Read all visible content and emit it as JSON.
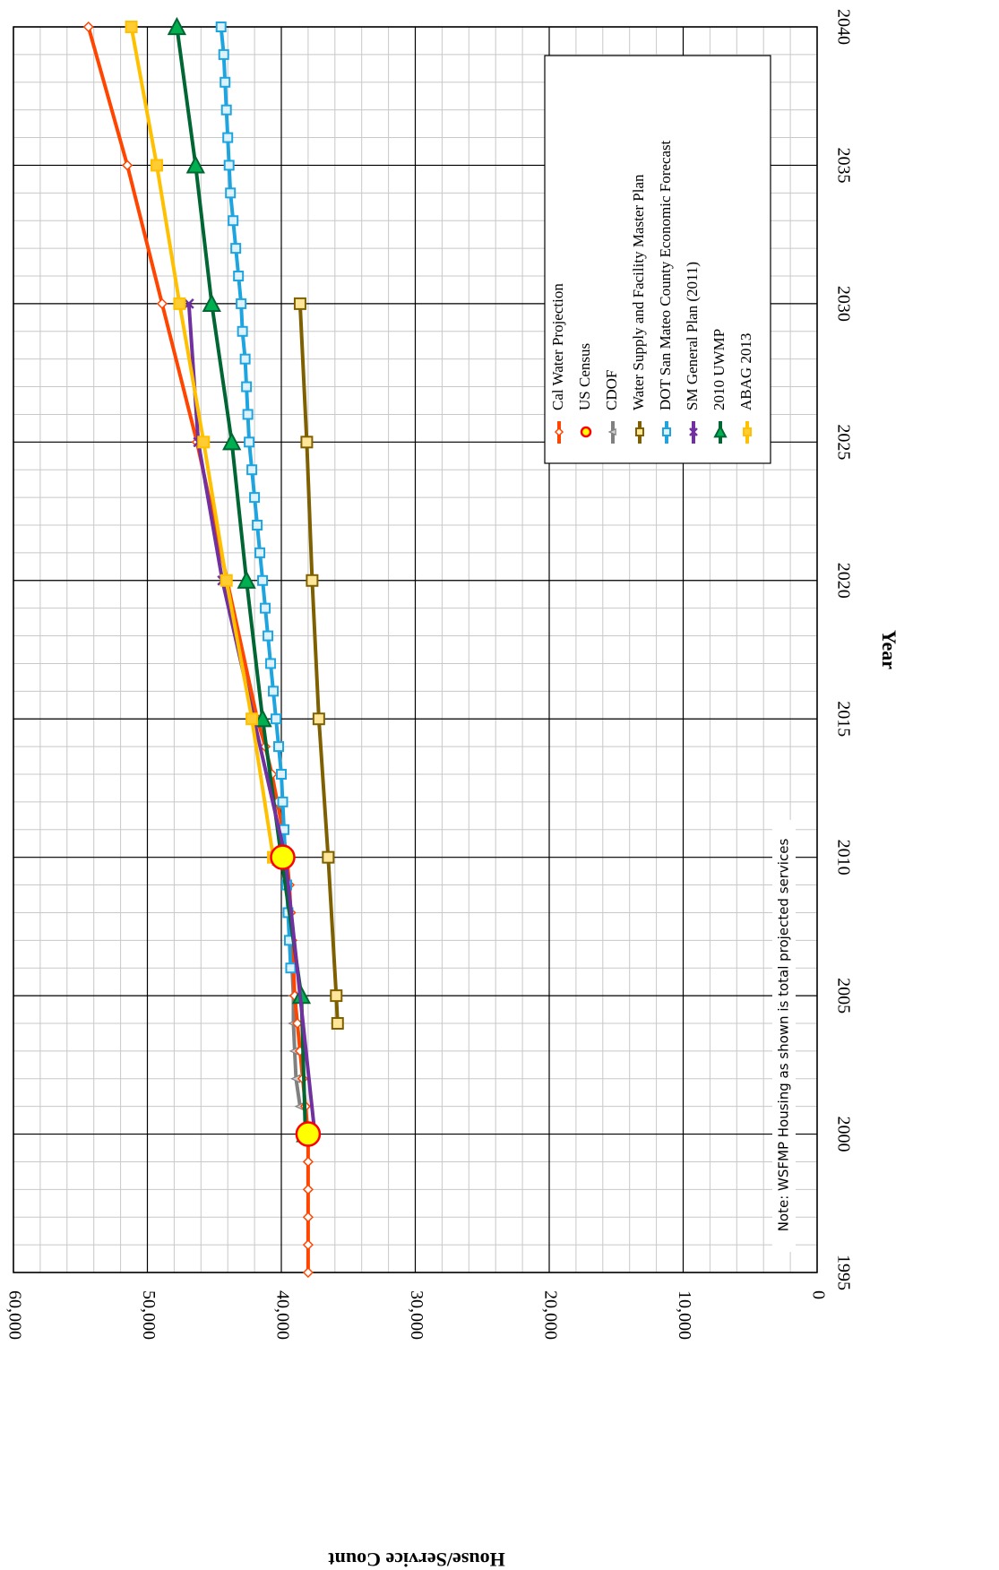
{
  "chart_data": {
    "type": "line",
    "xlabel": "Year",
    "ylabel": "House/Service Count",
    "xlim": [
      1995,
      2040
    ],
    "ylim": [
      0,
      60000
    ],
    "x_ticks": [
      "1995",
      "2000",
      "2005",
      "2010",
      "2015",
      "2020",
      "2025",
      "2030",
      "2035",
      "2040"
    ],
    "y_ticks": [
      "0",
      "10,000",
      "20,000",
      "30,000",
      "40,000",
      "50,000",
      "60,000"
    ],
    "grid": true,
    "legend_position": "top-right",
    "annotation": "Note: WSFMP Housing as shown is total projected services",
    "series": [
      {
        "name": "Cal Water Projection",
        "color": "#ff4500",
        "marker": "diamond",
        "x": [
          1995,
          1996,
          1997,
          1998,
          1999,
          2000,
          2001,
          2002,
          2003,
          2004,
          2005,
          2006,
          2007,
          2008,
          2009,
          2010,
          2011,
          2012,
          2013,
          2014,
          2015,
          2025,
          2030,
          2035,
          2040
        ],
        "y": [
          38000,
          38000,
          38000,
          38000,
          38000,
          38000,
          38200,
          38400,
          38600,
          38800,
          39000,
          39100,
          39200,
          39300,
          39400,
          39600,
          39900,
          40300,
          40700,
          41200,
          41800,
          46300,
          48900,
          51500,
          54400
        ]
      },
      {
        "name": "US Census",
        "color": "#ffff00",
        "edge": "#ff0000",
        "marker": "circle",
        "x": [
          2000,
          2010
        ],
        "y": [
          38000,
          39900
        ]
      },
      {
        "name": "CDOF",
        "color": "#808080",
        "marker": "triangle",
        "x": [
          2001,
          2002,
          2003,
          2004,
          2005,
          2006,
          2007,
          2008,
          2009
        ],
        "y": [
          38600,
          38900,
          39000,
          39100,
          39100,
          39200,
          39300,
          39500,
          39500
        ]
      },
      {
        "name": "Water Supply and Facility Master Plan",
        "color": "#7f6000",
        "fill": "#ffe699",
        "marker": "square",
        "x": [
          2004,
          2005,
          2010,
          2015,
          2020,
          2025,
          2030
        ],
        "y": [
          35800,
          35900,
          36500,
          37200,
          37700,
          38100,
          38600
        ]
      },
      {
        "name": "DOT San Mateo County Economic Forecast",
        "color": "#1ea5e0",
        "fill": "#ddf1fb",
        "marker": "square",
        "x": [
          2006,
          2007,
          2008,
          2009,
          2010,
          2011,
          2012,
          2013,
          2014,
          2015,
          2016,
          2017,
          2018,
          2019,
          2020,
          2021,
          2022,
          2023,
          2024,
          2025,
          2026,
          2027,
          2028,
          2029,
          2030,
          2031,
          2032,
          2033,
          2034,
          2035,
          2036,
          2037,
          2038,
          2039,
          2040
        ],
        "y": [
          39300,
          39400,
          39500,
          39600,
          39700,
          39800,
          39900,
          40000,
          40200,
          40400,
          40600,
          40800,
          41000,
          41200,
          41400,
          41600,
          41800,
          42000,
          42200,
          42400,
          42500,
          42600,
          42700,
          42900,
          43000,
          43200,
          43400,
          43600,
          43800,
          43900,
          44000,
          44100,
          44200,
          44300,
          44500
        ]
      },
      {
        "name": "SM General Plan (2011)",
        "color": "#7030a0",
        "marker": "x",
        "x": [
          2000,
          2010,
          2020,
          2025,
          2030
        ],
        "y": [
          37500,
          39700,
          44400,
          46200,
          46900
        ]
      },
      {
        "name": "2010 UWMP",
        "color": "#006633",
        "fill": "#00b050",
        "marker": "triangle-left",
        "x": [
          2000,
          2005,
          2010,
          2015,
          2020,
          2025,
          2030,
          2035,
          2040
        ],
        "y": [
          38200,
          38500,
          40000,
          41400,
          42600,
          43700,
          45200,
          46400,
          47800
        ]
      },
      {
        "name": "ABAG 2013",
        "color": "#ffc000",
        "fill": "#ffcc33",
        "marker": "square",
        "x": [
          2010,
          2015,
          2020,
          2025,
          2030,
          2035,
          2040
        ],
        "y": [
          40600,
          42200,
          44100,
          45800,
          47600,
          49300,
          51200
        ]
      }
    ]
  }
}
